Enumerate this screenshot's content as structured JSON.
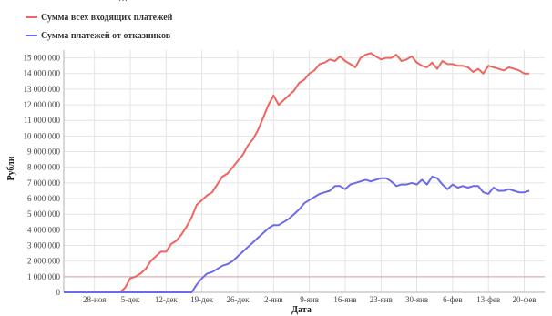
{
  "header": {
    "subtitle_cut": "…"
  },
  "colors": {
    "series_total": "#f0645f",
    "series_churn": "#6b6be8",
    "grid": "#e4e4e4",
    "axis": "#b0b0b0",
    "baseline": "#d9a0a0"
  },
  "chart_data": {
    "type": "line",
    "title": "",
    "xlabel": "Дата",
    "ylabel": "Рубли",
    "ylim": [
      0,
      15500000
    ],
    "y_ticks": [
      0,
      1000000,
      2000000,
      3000000,
      4000000,
      5000000,
      6000000,
      7000000,
      8000000,
      9000000,
      10000000,
      11000000,
      12000000,
      13000000,
      14000000,
      15000000
    ],
    "y_tick_labels": [
      "0",
      "1 000 000",
      "2 000 000",
      "3 000 000",
      "4 000 000",
      "5 000 000",
      "6 000 000",
      "7 000 000",
      "8 000 000",
      "9 000 000",
      "10 000 000",
      "11 000 000",
      "12 000 000",
      "13 000 000",
      "14 000 000",
      "15 000 000"
    ],
    "x_range": [
      0,
      94
    ],
    "x_ticks": [
      {
        "x": 6,
        "label": "28-ноя"
      },
      {
        "x": 13,
        "label": "5-дек"
      },
      {
        "x": 20,
        "label": "12-дек"
      },
      {
        "x": 27,
        "label": "19-дек"
      },
      {
        "x": 34,
        "label": "26-дек"
      },
      {
        "x": 41,
        "label": "2-янв"
      },
      {
        "x": 48,
        "label": "9-янв"
      },
      {
        "x": 55,
        "label": "16-янв"
      },
      {
        "x": 62,
        "label": "23-янв"
      },
      {
        "x": 69,
        "label": "30-янв"
      },
      {
        "x": 76,
        "label": "6-фев"
      },
      {
        "x": 83,
        "label": "13-фев"
      },
      {
        "x": 90,
        "label": "20-фев"
      }
    ],
    "grid": true,
    "legend_position": "top-left",
    "reference_line": 1000000,
    "series": [
      {
        "name": "Сумма всех входящих платежей",
        "color": "#f0645f",
        "points": [
          [
            0,
            0
          ],
          [
            6,
            0
          ],
          [
            11,
            0
          ],
          [
            12,
            300000
          ],
          [
            13,
            900000
          ],
          [
            14,
            1000000
          ],
          [
            15,
            1200000
          ],
          [
            16,
            1500000
          ],
          [
            17,
            2000000
          ],
          [
            18,
            2300000
          ],
          [
            19,
            2600000
          ],
          [
            20,
            2600000
          ],
          [
            21,
            3100000
          ],
          [
            22,
            3300000
          ],
          [
            23,
            3700000
          ],
          [
            24,
            4200000
          ],
          [
            25,
            4800000
          ],
          [
            26,
            5600000
          ],
          [
            27,
            5900000
          ],
          [
            28,
            6200000
          ],
          [
            29,
            6400000
          ],
          [
            30,
            6900000
          ],
          [
            31,
            7400000
          ],
          [
            32,
            7600000
          ],
          [
            33,
            8000000
          ],
          [
            34,
            8400000
          ],
          [
            35,
            8800000
          ],
          [
            36,
            9400000
          ],
          [
            37,
            9800000
          ],
          [
            38,
            10400000
          ],
          [
            39,
            11200000
          ],
          [
            40,
            12000000
          ],
          [
            41,
            12600000
          ],
          [
            42,
            12000000
          ],
          [
            43,
            12300000
          ],
          [
            44,
            12600000
          ],
          [
            45,
            12900000
          ],
          [
            46,
            13400000
          ],
          [
            47,
            13600000
          ],
          [
            48,
            14000000
          ],
          [
            49,
            14200000
          ],
          [
            50,
            14600000
          ],
          [
            51,
            14700000
          ],
          [
            52,
            14900000
          ],
          [
            53,
            14800000
          ],
          [
            54,
            15100000
          ],
          [
            55,
            14800000
          ],
          [
            56,
            14600000
          ],
          [
            57,
            14400000
          ],
          [
            58,
            15000000
          ],
          [
            59,
            15200000
          ],
          [
            60,
            15300000
          ],
          [
            61,
            15100000
          ],
          [
            62,
            14900000
          ],
          [
            63,
            15000000
          ],
          [
            64,
            15000000
          ],
          [
            65,
            15200000
          ],
          [
            66,
            14800000
          ],
          [
            67,
            14900000
          ],
          [
            68,
            15100000
          ],
          [
            69,
            14700000
          ],
          [
            70,
            14500000
          ],
          [
            71,
            14400000
          ],
          [
            72,
            14700000
          ],
          [
            73,
            14300000
          ],
          [
            74,
            14800000
          ],
          [
            75,
            14600000
          ],
          [
            76,
            14600000
          ],
          [
            77,
            14500000
          ],
          [
            78,
            14500000
          ],
          [
            79,
            14400000
          ],
          [
            80,
            14100000
          ],
          [
            81,
            14300000
          ],
          [
            82,
            14000000
          ],
          [
            83,
            14500000
          ],
          [
            84,
            14400000
          ],
          [
            85,
            14300000
          ],
          [
            86,
            14200000
          ],
          [
            87,
            14400000
          ],
          [
            88,
            14300000
          ],
          [
            89,
            14200000
          ],
          [
            90,
            14000000
          ],
          [
            91,
            14000000
          ]
        ]
      },
      {
        "name": "Сумма платежей от отказников",
        "color": "#6b6be8",
        "points": [
          [
            0,
            0
          ],
          [
            6,
            0
          ],
          [
            25,
            0
          ],
          [
            26,
            500000
          ],
          [
            27,
            900000
          ],
          [
            28,
            1200000
          ],
          [
            29,
            1300000
          ],
          [
            30,
            1500000
          ],
          [
            31,
            1700000
          ],
          [
            32,
            1800000
          ],
          [
            33,
            2000000
          ],
          [
            34,
            2300000
          ],
          [
            35,
            2600000
          ],
          [
            36,
            2900000
          ],
          [
            37,
            3200000
          ],
          [
            38,
            3500000
          ],
          [
            39,
            3800000
          ],
          [
            40,
            4100000
          ],
          [
            41,
            4300000
          ],
          [
            42,
            4300000
          ],
          [
            43,
            4500000
          ],
          [
            44,
            4700000
          ],
          [
            45,
            5000000
          ],
          [
            46,
            5300000
          ],
          [
            47,
            5700000
          ],
          [
            48,
            5900000
          ],
          [
            49,
            6100000
          ],
          [
            50,
            6300000
          ],
          [
            51,
            6400000
          ],
          [
            52,
            6500000
          ],
          [
            53,
            6800000
          ],
          [
            54,
            6800000
          ],
          [
            55,
            6600000
          ],
          [
            56,
            6900000
          ],
          [
            57,
            7000000
          ],
          [
            58,
            7100000
          ],
          [
            59,
            7200000
          ],
          [
            60,
            7100000
          ],
          [
            61,
            7200000
          ],
          [
            62,
            7300000
          ],
          [
            63,
            7300000
          ],
          [
            64,
            7100000
          ],
          [
            65,
            6800000
          ],
          [
            66,
            6900000
          ],
          [
            67,
            6900000
          ],
          [
            68,
            7000000
          ],
          [
            69,
            6900000
          ],
          [
            70,
            7200000
          ],
          [
            71,
            6900000
          ],
          [
            72,
            7400000
          ],
          [
            73,
            7300000
          ],
          [
            74,
            6900000
          ],
          [
            75,
            6600000
          ],
          [
            76,
            6900000
          ],
          [
            77,
            6700000
          ],
          [
            78,
            6800000
          ],
          [
            79,
            6700000
          ],
          [
            80,
            6800000
          ],
          [
            81,
            6800000
          ],
          [
            82,
            6400000
          ],
          [
            83,
            6300000
          ],
          [
            84,
            6700000
          ],
          [
            85,
            6500000
          ],
          [
            86,
            6500000
          ],
          [
            87,
            6600000
          ],
          [
            88,
            6500000
          ],
          [
            89,
            6400000
          ],
          [
            90,
            6400000
          ],
          [
            91,
            6500000
          ]
        ]
      }
    ]
  }
}
